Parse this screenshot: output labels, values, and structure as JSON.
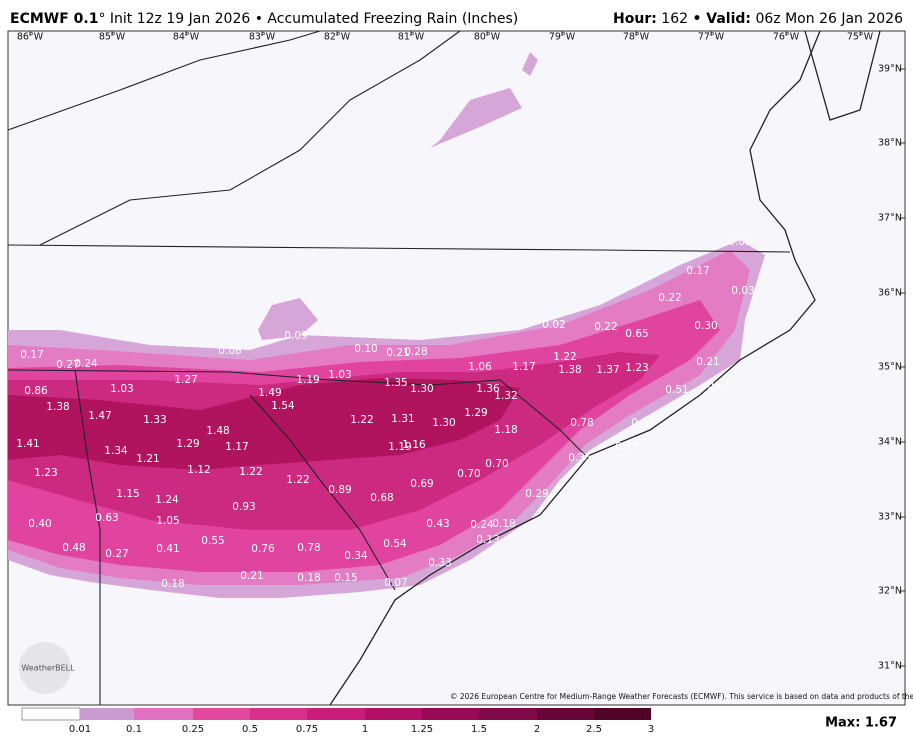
{
  "header": {
    "model": "ECMWF 0.1",
    "degree": "°",
    "description": "Init 12z 19 Jan 2026 • Accumulated Freezing Rain (Inches)",
    "hour_label": "Hour:",
    "hour": "162",
    "valid_label": "• Valid:",
    "valid": "06z Mon 26 Jan 2026"
  },
  "map": {
    "longitudes": [
      "86°W",
      "85°W",
      "84°W",
      "83°W",
      "82°W",
      "81°W",
      "80°W",
      "79°W",
      "78°W",
      "77°W",
      "76°W",
      "75°W"
    ],
    "latitudes": [
      "39°N",
      "38°N",
      "37°N",
      "36°N",
      "35°N",
      "34°N",
      "33°N",
      "32°N",
      "31°N"
    ],
    "point_labels": [
      "0.05",
      "0.17",
      "0.03",
      "0.22",
      "0.30",
      "0.02",
      "0.22",
      "0.65",
      "0.17",
      "0.27",
      "0.24",
      "0.08",
      "0.09",
      "0.10",
      "0.21",
      "0.28",
      "1.06",
      "1.17",
      "1.22",
      "1.38",
      "1.37",
      "1.23",
      "0.21",
      "0.86",
      "1.03",
      "1.27",
      "1.19",
      "1.03",
      "1.35",
      "1.30",
      "1.36",
      "1.32",
      "0.01",
      "0.51",
      "1.38",
      "1.49",
      "1.54",
      "1.47",
      "1.33",
      "1.22",
      "1.31",
      "1.30",
      "1.29",
      "0.78",
      "0.53",
      "1.18",
      "1.48",
      "1.29",
      "1.17",
      "1.41",
      "1.34",
      "1.19",
      "1.16",
      "0.27",
      "1.21",
      "0.35",
      "1.23",
      "1.12",
      "1.22",
      "1.22",
      "0.70",
      "0.70",
      "0.89",
      "0.69",
      "1.15",
      "1.24",
      "0.68",
      "0.93",
      "0.29",
      "0.40",
      "0.63",
      "1.05",
      "0.43",
      "0.24",
      "0.18",
      "0.13",
      "0.55",
      "0.54",
      "0.48",
      "0.27",
      "0.41",
      "0.76",
      "0.78",
      "0.34",
      "0.33",
      "0.21",
      "0.18",
      "0.15",
      "0.07",
      "0.18"
    ],
    "copyright": "© 2026 European Centre for Medium-Range Weather Forecasts (ECMWF). This service is based on data and products of the ECMWF.",
    "logo": "WeatherBELL"
  },
  "legend": {
    "labels": [
      "0.01",
      "0.1",
      "0.25",
      "0.5",
      "0.75",
      "1",
      "1.25",
      "1.5",
      "2",
      "2.5",
      "3"
    ],
    "max": "Max: 1.67"
  }
}
